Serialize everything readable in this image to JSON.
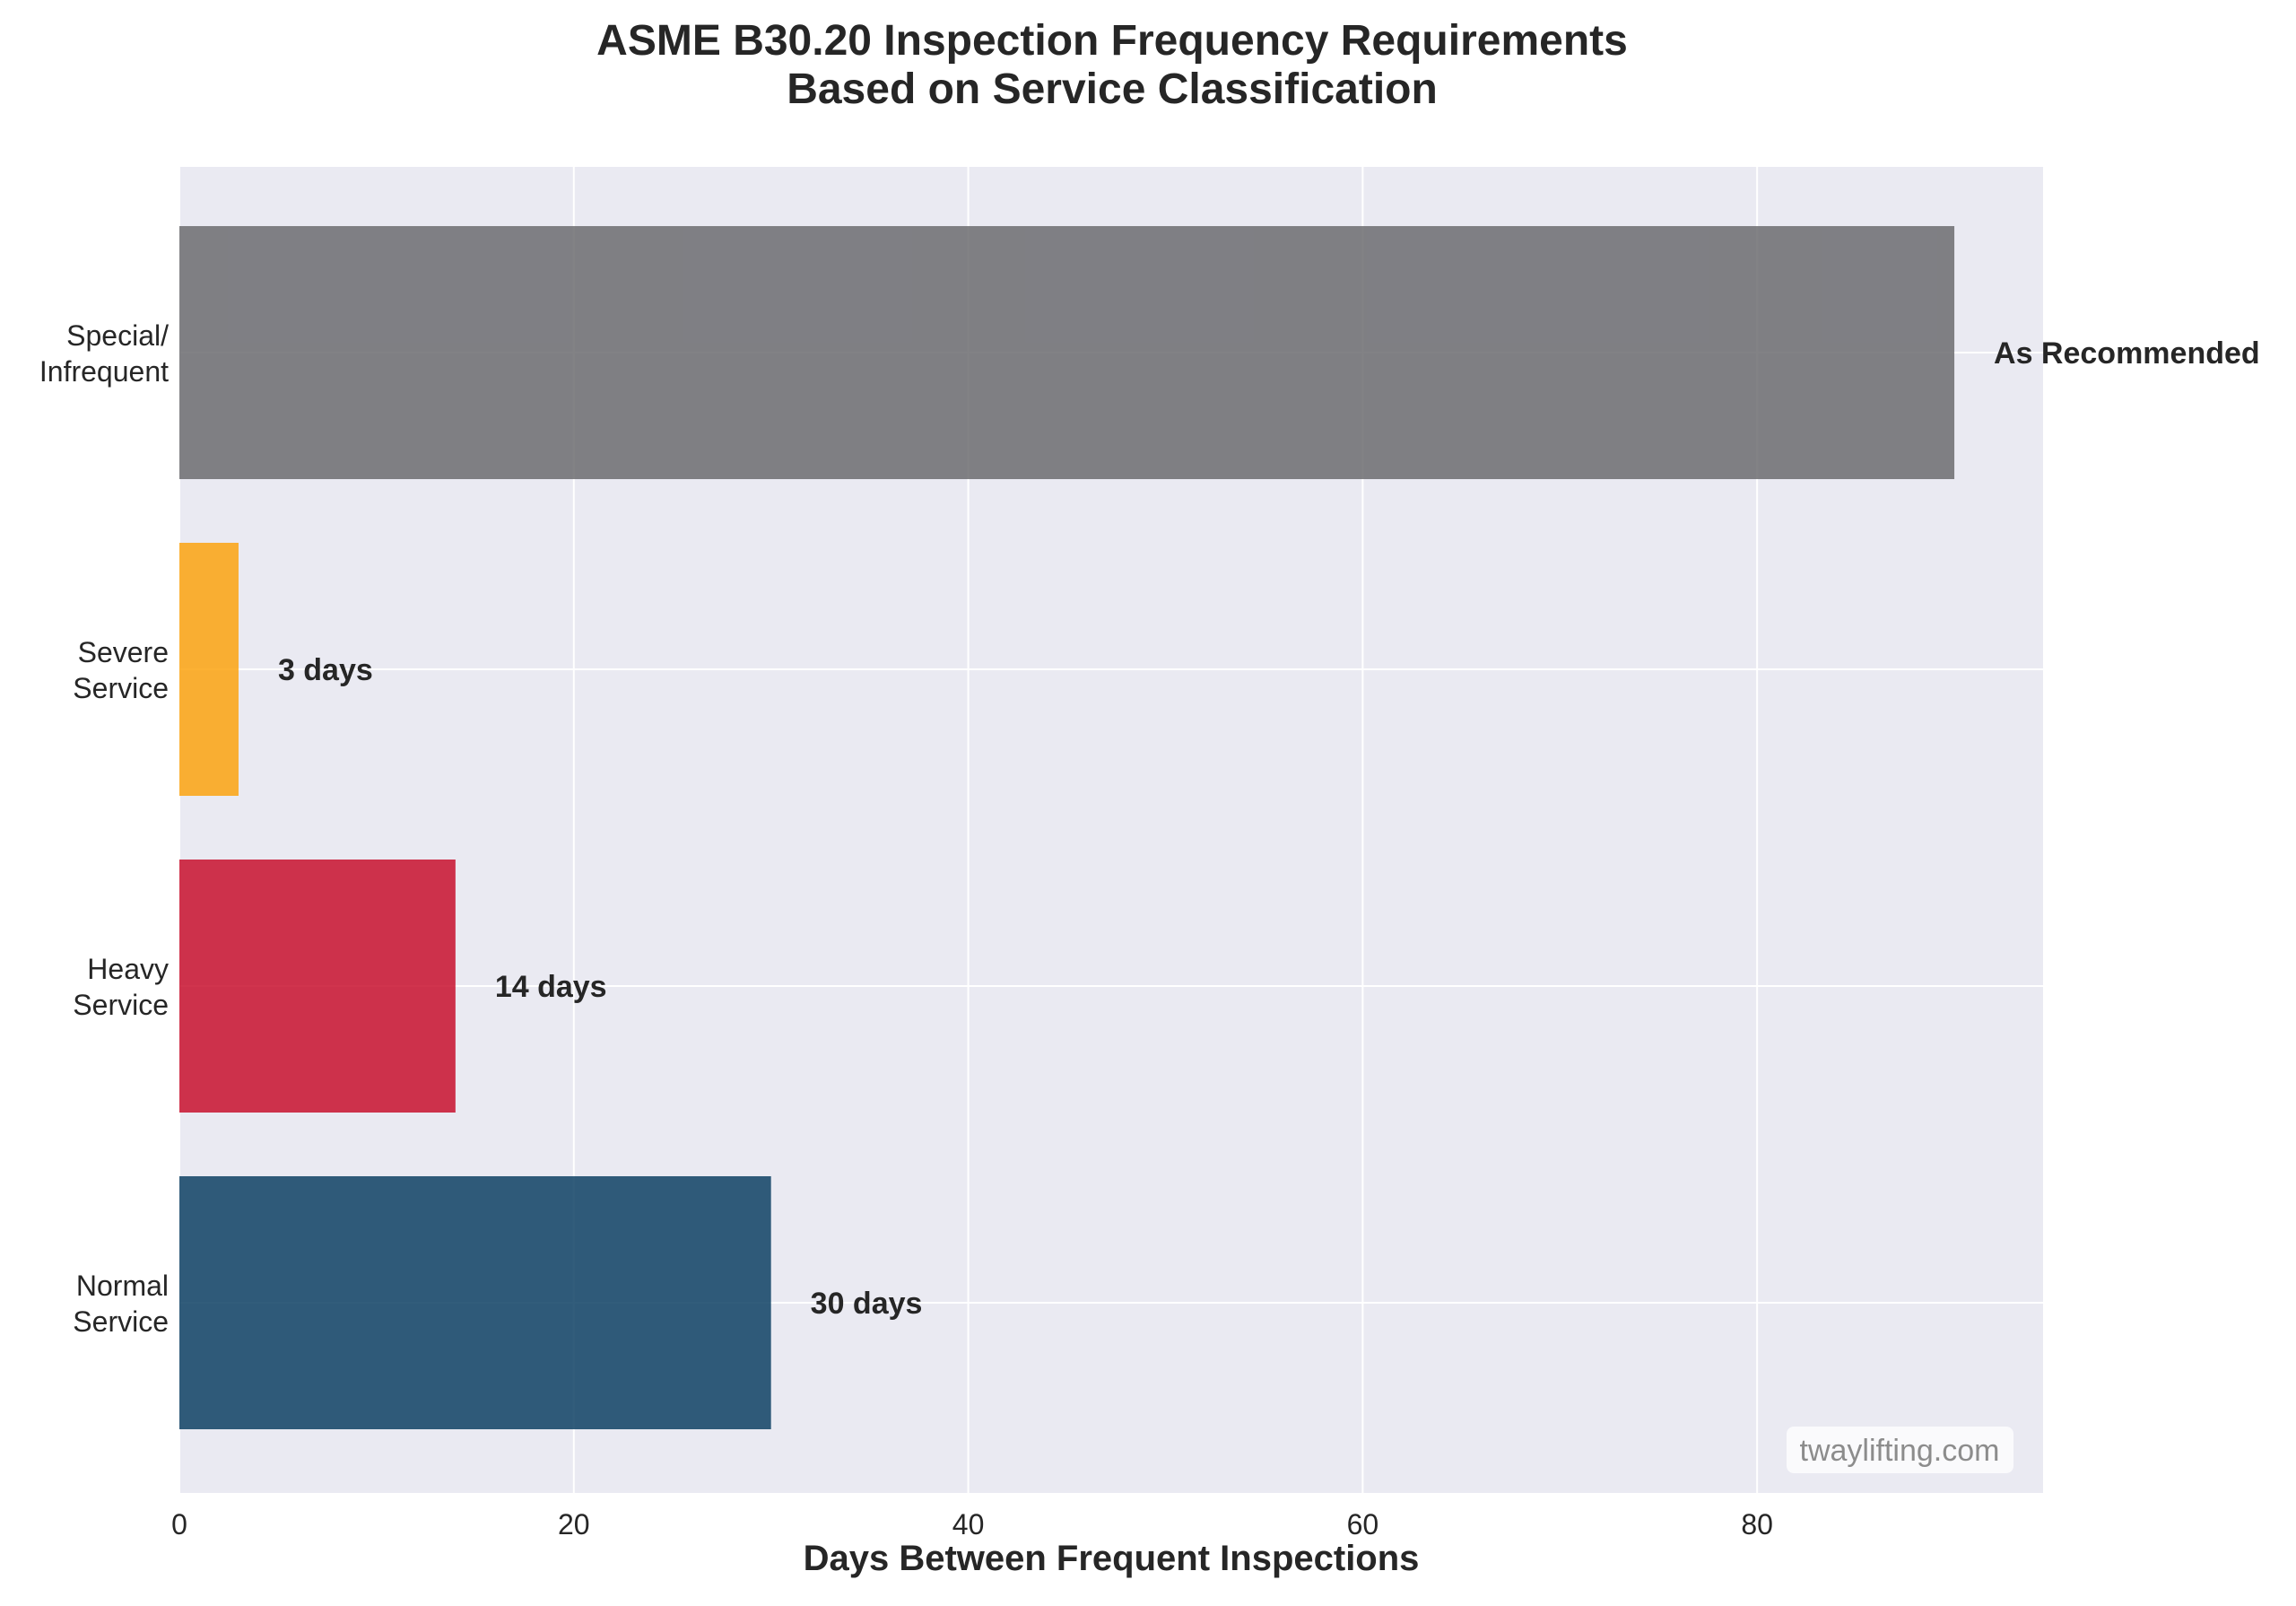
{
  "chart_data": {
    "type": "bar",
    "orientation": "horizontal",
    "title_line1": "ASME B30.20 Inspection Frequency Requirements",
    "title_line2": "Based on Service Classification",
    "xlabel": "Days Between Frequent Inspections",
    "ylabel": "",
    "xlim": [
      0,
      94.5
    ],
    "xticks": [
      0,
      20,
      40,
      60,
      80
    ],
    "grid": true,
    "categories": [
      {
        "lines": [
          "Normal",
          "Service"
        ],
        "value": 30,
        "label": "30 days",
        "color": "#0e4164"
      },
      {
        "lines": [
          "Heavy",
          "Service"
        ],
        "value": 14,
        "label": "14 days",
        "color": "#c8102e"
      },
      {
        "lines": [
          "Severe",
          "Service"
        ],
        "value": 3,
        "label": "3 days",
        "color": "#fca311"
      },
      {
        "lines": [
          "Special/",
          "Infrequent"
        ],
        "value": 90,
        "label": "As Recommended",
        "color": "#6c6c70"
      }
    ],
    "watermark": "twaylifting.com",
    "colors": {
      "plot_bg": "#eaeaf2",
      "grid": "#ffffff"
    }
  }
}
